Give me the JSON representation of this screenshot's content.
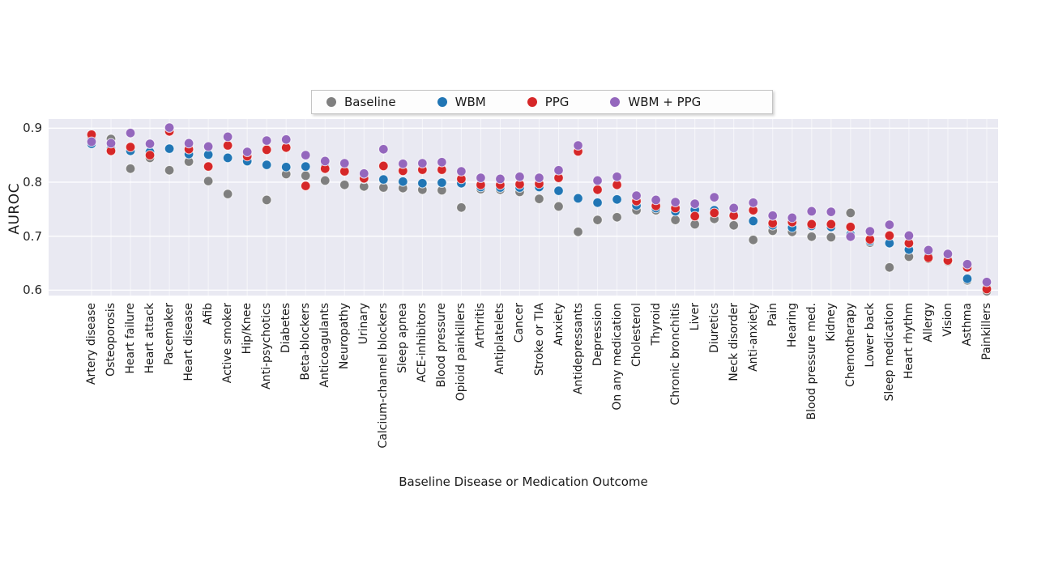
{
  "figure": {
    "ylabel": "AUROC",
    "xlabel": "Baseline Disease or Medication Outcome"
  },
  "chart_data": {
    "type": "scatter",
    "title": "",
    "xlabel": "Baseline Disease or Medication Outcome",
    "ylabel": "AUROC",
    "ylim": [
      0.591,
      0.915
    ],
    "yticks": [
      0.9,
      0.8,
      0.7,
      0.6
    ],
    "grid": true,
    "plot_background": "#e9e9f2",
    "gridline_color": "#ffffff",
    "legend_position": "top-center-outside",
    "marker": "circle",
    "categories": [
      "Artery disease",
      "Osteoporosis",
      "Heart failure",
      "Heart attack",
      "Pacemaker",
      "Heart disease",
      "Afib",
      "Active smoker",
      "Hip/Knee",
      "Anti-psychotics",
      "Diabetes",
      "Beta-blockers",
      "Anticoagulants",
      "Neuropathy",
      "Urinary",
      "Calcium-channel blockers",
      "Sleep apnea",
      "ACE-inhibitors",
      "Blood pressure",
      "Opioid painkillers",
      "Arthritis",
      "Antiplatelets",
      "Cancer",
      "Stroke or TIA",
      "Anxiety",
      "Antidepressants",
      "Depression",
      "On any medication",
      "Cholesterol",
      "Thyroid",
      "Chronic bronchitis",
      "Liver",
      "Diuretics",
      "Neck disorder",
      "Anti-anxiety",
      "Pain",
      "Hearing",
      "Blood pressure med.",
      "Kidney",
      "Chemotherapy",
      "Lower back",
      "Sleep medication",
      "Heart rhythm",
      "Allergy",
      "Vision",
      "Asthma",
      "Painkillers"
    ],
    "series": [
      {
        "name": "Baseline",
        "color": "#7f7f7f",
        "values": [
          0.882,
          0.88,
          0.825,
          0.845,
          0.822,
          0.838,
          0.802,
          0.778,
          0.838,
          0.767,
          0.815,
          0.812,
          0.803,
          0.795,
          0.792,
          0.79,
          0.789,
          0.786,
          0.785,
          0.753,
          0.787,
          0.786,
          0.782,
          0.769,
          0.755,
          0.708,
          0.73,
          0.735,
          0.748,
          0.748,
          0.73,
          0.722,
          0.732,
          0.72,
          0.693,
          0.71,
          0.708,
          0.699,
          0.698,
          0.743,
          0.688,
          0.642,
          0.662,
          0.658,
          0.653,
          0.618,
          0.598
        ]
      },
      {
        "name": "WBM",
        "color": "#2176b5",
        "values": [
          0.871,
          0.862,
          0.858,
          0.856,
          0.862,
          0.852,
          0.851,
          0.845,
          0.839,
          0.832,
          0.828,
          0.829,
          0.828,
          0.822,
          0.806,
          0.805,
          0.801,
          0.798,
          0.799,
          0.798,
          0.791,
          0.79,
          0.79,
          0.791,
          0.784,
          0.77,
          0.762,
          0.768,
          0.757,
          0.752,
          0.746,
          0.749,
          0.748,
          0.74,
          0.728,
          0.72,
          0.716,
          0.719,
          0.717,
          0.703,
          0.691,
          0.687,
          0.675,
          0.663,
          0.658,
          0.621,
          0.605
        ]
      },
      {
        "name": "PPG",
        "color": "#d62728",
        "values": [
          0.888,
          0.858,
          0.865,
          0.85,
          0.894,
          0.861,
          0.829,
          0.868,
          0.848,
          0.86,
          0.864,
          0.793,
          0.825,
          0.82,
          0.807,
          0.83,
          0.821,
          0.823,
          0.823,
          0.806,
          0.795,
          0.795,
          0.796,
          0.797,
          0.808,
          0.857,
          0.786,
          0.795,
          0.765,
          0.756,
          0.752,
          0.737,
          0.743,
          0.738,
          0.748,
          0.724,
          0.726,
          0.722,
          0.722,
          0.717,
          0.694,
          0.701,
          0.687,
          0.66,
          0.655,
          0.642,
          0.602
        ]
      },
      {
        "name": "WBM + PPG",
        "color": "#9467bd",
        "values": [
          0.875,
          0.872,
          0.891,
          0.871,
          0.901,
          0.872,
          0.866,
          0.884,
          0.856,
          0.877,
          0.879,
          0.85,
          0.839,
          0.835,
          0.816,
          0.861,
          0.834,
          0.835,
          0.837,
          0.82,
          0.808,
          0.806,
          0.81,
          0.808,
          0.822,
          0.868,
          0.803,
          0.81,
          0.775,
          0.767,
          0.763,
          0.76,
          0.772,
          0.752,
          0.762,
          0.738,
          0.734,
          0.746,
          0.745,
          0.699,
          0.709,
          0.721,
          0.701,
          0.674,
          0.667,
          0.648,
          0.615
        ]
      }
    ]
  }
}
